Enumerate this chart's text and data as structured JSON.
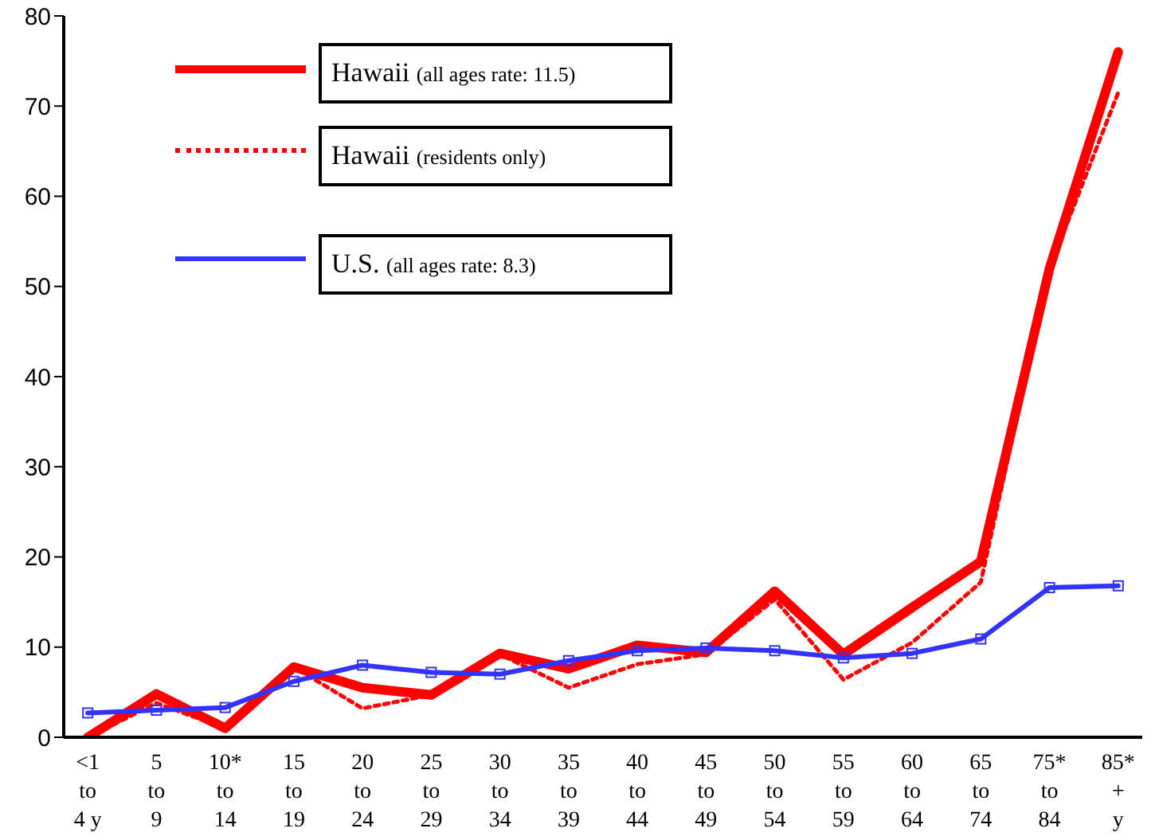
{
  "chart_data": {
    "type": "line",
    "categories": [
      "<1\nto\n4 y",
      "5\nto\n9",
      "10*\nto\n14",
      "15\nto\n19",
      "20\nto\n24",
      "25\nto\n29",
      "30\nto\n34",
      "35\nto\n39",
      "40\nto\n44",
      "45\nto\n49",
      "50\nto\n54",
      "55\nto\n59",
      "60\nto\n64",
      "65\nto\n74",
      "75*\nto\n84",
      "85*\n+\ny"
    ],
    "series": [
      {
        "name": "Hawaii (all ages rate: 11.5)",
        "color": "#ff0000",
        "line_style": "solid",
        "values": [
          0,
          4.8,
          1,
          7.8,
          5.5,
          4.7,
          9.3,
          7.6,
          10.2,
          9.4,
          16.2,
          9.2,
          14.4,
          19.5,
          52,
          76
        ]
      },
      {
        "name": "Hawaii (residents only)",
        "color": "#ff0000",
        "line_style": "dotted",
        "values": [
          0,
          3.8,
          1,
          7.8,
          3.2,
          4.7,
          9.2,
          5.5,
          8.1,
          9.2,
          15.3,
          6.4,
          10.5,
          17.2,
          52,
          71.5
        ]
      },
      {
        "name": "U.S. (all ages rate: 8.3)",
        "color": "#3333ff",
        "line_style": "solid",
        "marker": "square",
        "values": [
          2.7,
          3.0,
          3.3,
          6.2,
          8.0,
          7.2,
          7.0,
          8.5,
          9.6,
          9.9,
          9.6,
          8.8,
          9.3,
          10.9,
          16.6,
          16.8
        ]
      }
    ],
    "ylim": [
      0,
      80
    ],
    "yticks": [
      0,
      10,
      20,
      30,
      40,
      50,
      60,
      70,
      80
    ],
    "legend": "top left"
  }
}
